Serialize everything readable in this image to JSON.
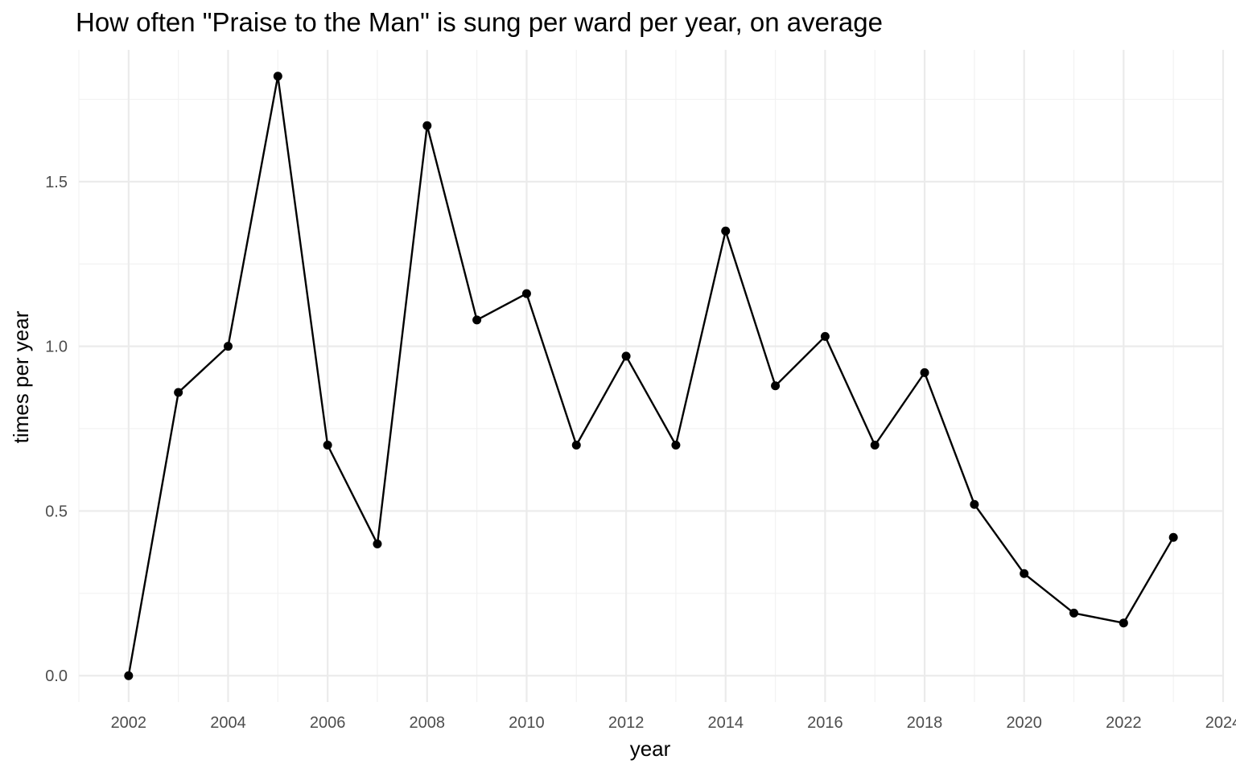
{
  "chart_data": {
    "type": "line",
    "title": "How often \"Praise to the Man\" is sung per ward per year, on average",
    "xlabel": "year",
    "ylabel": "times per year",
    "x": [
      2002,
      2003,
      2004,
      2005,
      2006,
      2007,
      2008,
      2009,
      2010,
      2011,
      2012,
      2013,
      2014,
      2015,
      2016,
      2017,
      2018,
      2019,
      2020,
      2021,
      2022,
      2023
    ],
    "series": [
      {
        "values": [
          0.0,
          0.86,
          1.0,
          1.82,
          0.7,
          0.4,
          1.67,
          1.08,
          1.16,
          0.7,
          0.97,
          0.7,
          1.35,
          0.88,
          1.03,
          0.7,
          0.92,
          0.52,
          0.31,
          0.19,
          0.16,
          0.42
        ]
      }
    ],
    "xlim": [
      2001,
      2024
    ],
    "ylim": [
      -0.08,
      1.9
    ],
    "x_ticks": [
      "2002",
      "2004",
      "2006",
      "2008",
      "2010",
      "2012",
      "2014",
      "2016",
      "2018",
      "2020",
      "2022",
      "2024"
    ],
    "y_ticks": [
      "0.0",
      "0.5",
      "1.0",
      "1.5"
    ],
    "grid": true,
    "legend": "none",
    "colors": {
      "line": "#000000",
      "point": "#000000",
      "grid_major": "#ebebeb",
      "grid_minor": "#f2f2f2",
      "tick_text": "#4d4d4d",
      "background": "#ffffff"
    }
  }
}
